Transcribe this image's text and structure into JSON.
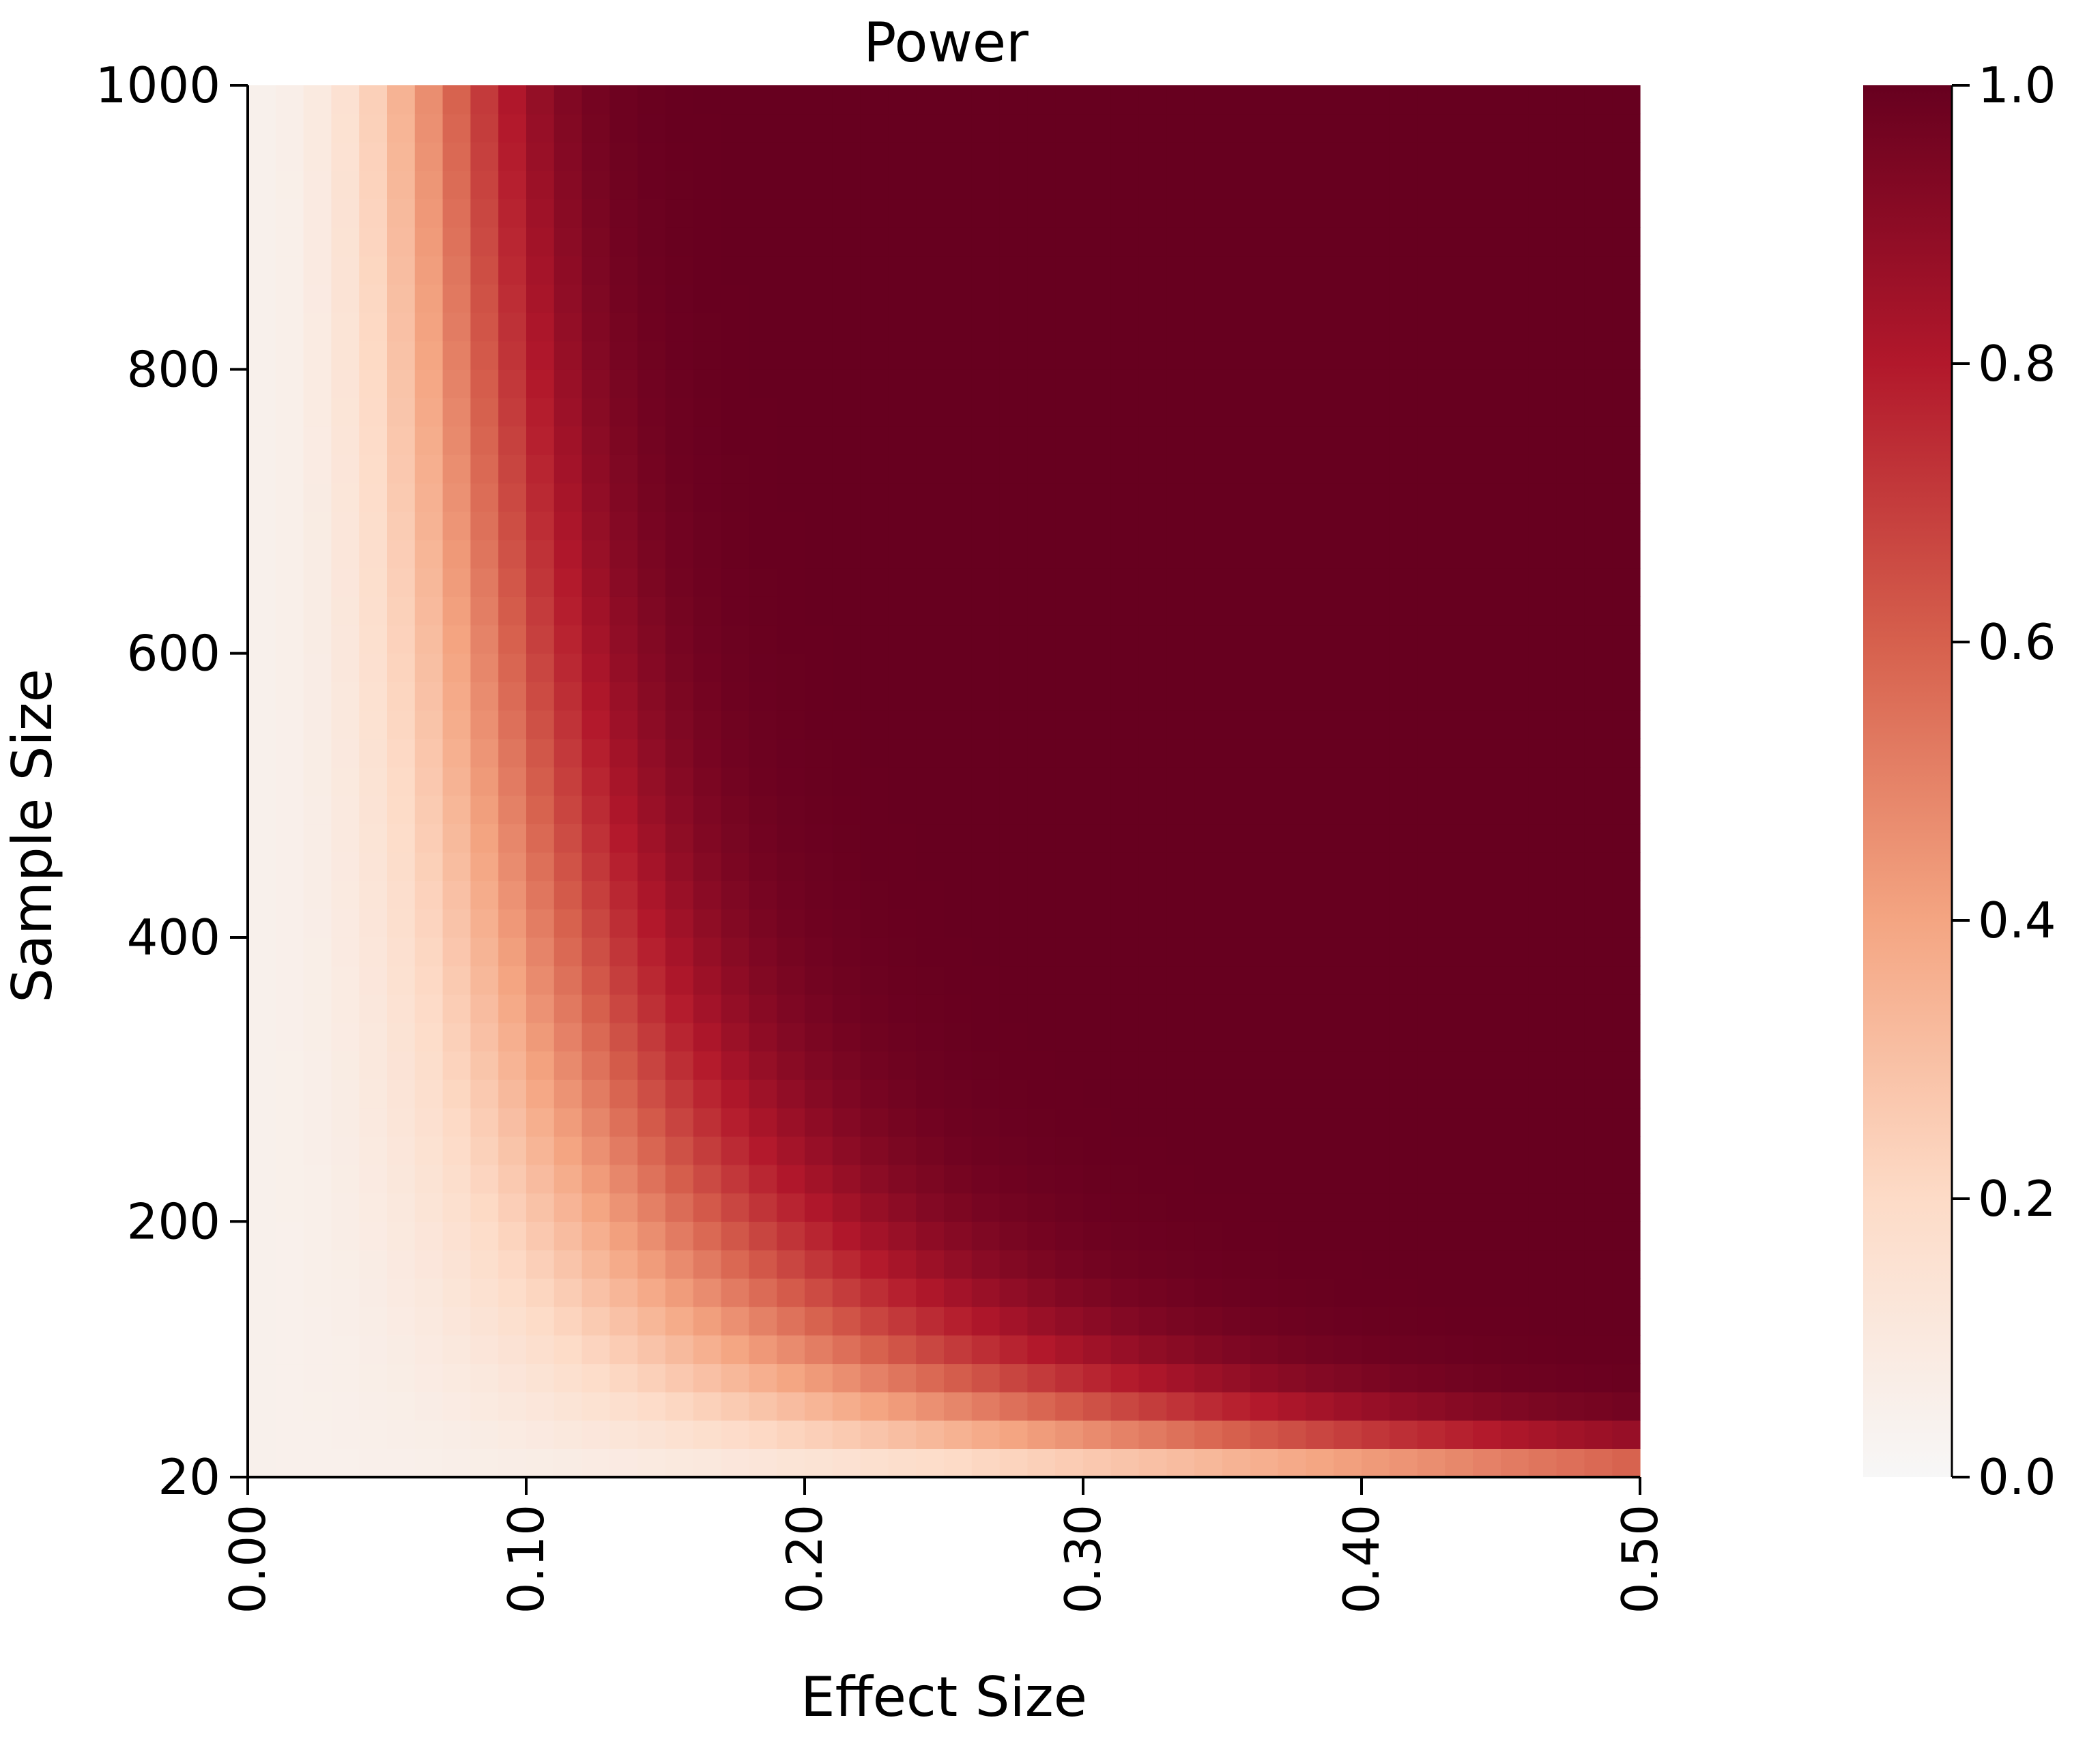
{
  "chart_data": {
    "type": "heatmap",
    "title": "Power",
    "xlabel": "Effect Size",
    "ylabel": "Sample Size",
    "x_range": [
      0,
      0.5
    ],
    "y_range": [
      20,
      1000
    ],
    "x_ticks": [
      {
        "value": 0.0,
        "label": "0.00"
      },
      {
        "value": 0.1,
        "label": "0.10"
      },
      {
        "value": 0.2,
        "label": "0.20"
      },
      {
        "value": 0.3,
        "label": "0.30"
      },
      {
        "value": 0.4,
        "label": "0.40"
      },
      {
        "value": 0.5,
        "label": "0.50"
      }
    ],
    "y_ticks": [
      {
        "value": 20,
        "label": "20"
      },
      {
        "value": 200,
        "label": "200"
      },
      {
        "value": 400,
        "label": "400"
      },
      {
        "value": 600,
        "label": "600"
      },
      {
        "value": 800,
        "label": "800"
      },
      {
        "value": 1000,
        "label": "1000"
      }
    ],
    "grid": false,
    "effect_size_step": 0.01,
    "sample_size_step": 20,
    "colorbar": {
      "range": [
        0,
        1
      ],
      "ticks": [
        {
          "value": 0.0,
          "label": "0.0"
        },
        {
          "value": 0.2,
          "label": "0.2"
        },
        {
          "value": 0.4,
          "label": "0.4"
        },
        {
          "value": 0.6,
          "label": "0.6"
        },
        {
          "value": 0.8,
          "label": "0.8"
        },
        {
          "value": 1.0,
          "label": "1.0"
        }
      ],
      "placement": "right"
    },
    "colormap": {
      "name": "Reds",
      "stops": [
        "#f7f7f7",
        "#fddbc7",
        "#f4a582",
        "#d6604d",
        "#b2182b",
        "#67001f"
      ]
    },
    "alpha": 0.05
  }
}
